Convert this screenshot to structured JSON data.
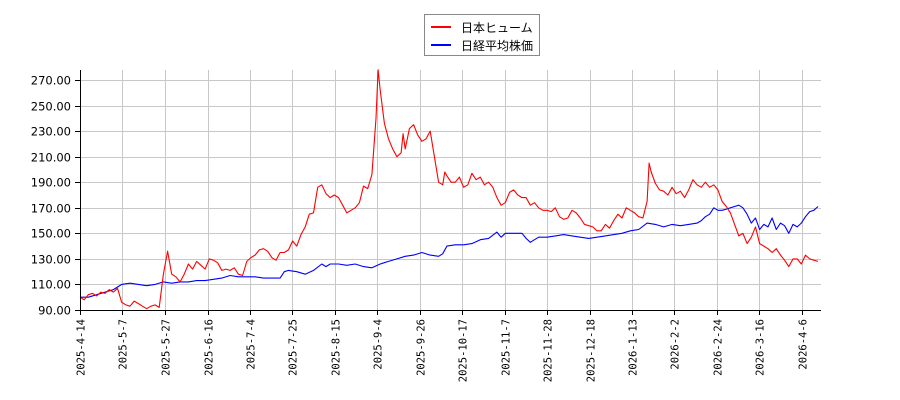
{
  "chart_data": {
    "type": "line",
    "title": "",
    "xlabel": "",
    "ylabel": "",
    "ylim": [
      90,
      280
    ],
    "grid": true,
    "legend_position": "top-center",
    "y_ticks": [
      "90.00",
      "110.00",
      "130.00",
      "150.00",
      "170.00",
      "190.00",
      "210.00",
      "230.00",
      "250.00",
      "270.00"
    ],
    "x_ticks": [
      "2025-4-14",
      "2025-5-7",
      "2025-5-27",
      "2025-6-16",
      "2025-7-4",
      "2025-7-25",
      "2025-8-15",
      "2025-9-4",
      "2025-9-26",
      "2025-10-17",
      "2025-11-7",
      "2025-11-28",
      "2025-12-18",
      "2026-1-13",
      "2026-2-2",
      "2026-2-24",
      "2026-3-16",
      "2026-4-6"
    ],
    "series": [
      {
        "name": "日本ヒューム",
        "color": "#ff0000",
        "points": [
          [
            0,
            100
          ],
          [
            2,
            98
          ],
          [
            4,
            102
          ],
          [
            6,
            103
          ],
          [
            8,
            101
          ],
          [
            10,
            104
          ],
          [
            12,
            103
          ],
          [
            14,
            106
          ],
          [
            16,
            104
          ],
          [
            18,
            107
          ],
          [
            20,
            96
          ],
          [
            22,
            94
          ],
          [
            24,
            93
          ],
          [
            26,
            97
          ],
          [
            28,
            95
          ],
          [
            30,
            93
          ],
          [
            32,
            91
          ],
          [
            34,
            93
          ],
          [
            36,
            94
          ],
          [
            38,
            92
          ],
          [
            40,
            118
          ],
          [
            42,
            136
          ],
          [
            44,
            118
          ],
          [
            46,
            116
          ],
          [
            48,
            112
          ],
          [
            50,
            118
          ],
          [
            52,
            126
          ],
          [
            54,
            122
          ],
          [
            56,
            128
          ],
          [
            58,
            125
          ],
          [
            60,
            122
          ],
          [
            62,
            130
          ],
          [
            64,
            129
          ],
          [
            66,
            127
          ],
          [
            68,
            121
          ],
          [
            70,
            122
          ],
          [
            72,
            121
          ],
          [
            74,
            123
          ],
          [
            76,
            118
          ],
          [
            78,
            117
          ],
          [
            80,
            128
          ],
          [
            82,
            131
          ],
          [
            84,
            133
          ],
          [
            86,
            137
          ],
          [
            88,
            138
          ],
          [
            90,
            136
          ],
          [
            92,
            131
          ],
          [
            94,
            129
          ],
          [
            96,
            135
          ],
          [
            98,
            135
          ],
          [
            100,
            137
          ],
          [
            102,
            144
          ],
          [
            104,
            140
          ],
          [
            106,
            149
          ],
          [
            108,
            155
          ],
          [
            110,
            165
          ],
          [
            112,
            166
          ],
          [
            114,
            186
          ],
          [
            116,
            188
          ],
          [
            118,
            181
          ],
          [
            120,
            178
          ],
          [
            122,
            180
          ],
          [
            124,
            178
          ],
          [
            126,
            172
          ],
          [
            128,
            166
          ],
          [
            130,
            168
          ],
          [
            132,
            170
          ],
          [
            134,
            174
          ],
          [
            136,
            187
          ],
          [
            138,
            185
          ],
          [
            140,
            196
          ],
          [
            142,
            240
          ],
          [
            143,
            278
          ],
          [
            144,
            262
          ],
          [
            146,
            236
          ],
          [
            148,
            224
          ],
          [
            150,
            216
          ],
          [
            152,
            210
          ],
          [
            154,
            213
          ],
          [
            155,
            228
          ],
          [
            156,
            216
          ],
          [
            158,
            232
          ],
          [
            160,
            235
          ],
          [
            162,
            227
          ],
          [
            164,
            222
          ],
          [
            166,
            224
          ],
          [
            168,
            230
          ],
          [
            170,
            210
          ],
          [
            172,
            190
          ],
          [
            174,
            188
          ],
          [
            175,
            198
          ],
          [
            176,
            195
          ],
          [
            178,
            190
          ],
          [
            180,
            190
          ],
          [
            182,
            194
          ],
          [
            184,
            186
          ],
          [
            186,
            188
          ],
          [
            188,
            197
          ],
          [
            190,
            192
          ],
          [
            192,
            194
          ],
          [
            194,
            188
          ],
          [
            196,
            190
          ],
          [
            198,
            186
          ],
          [
            200,
            178
          ],
          [
            202,
            172
          ],
          [
            204,
            174
          ],
          [
            206,
            182
          ],
          [
            208,
            184
          ],
          [
            210,
            180
          ],
          [
            212,
            178
          ],
          [
            214,
            178
          ],
          [
            216,
            172
          ],
          [
            218,
            174
          ],
          [
            220,
            170
          ],
          [
            222,
            168
          ],
          [
            224,
            168
          ],
          [
            226,
            167
          ],
          [
            228,
            170
          ],
          [
            230,
            163
          ],
          [
            232,
            161
          ],
          [
            234,
            162
          ],
          [
            236,
            168
          ],
          [
            238,
            166
          ],
          [
            240,
            162
          ],
          [
            242,
            157
          ],
          [
            244,
            156
          ],
          [
            246,
            155
          ],
          [
            248,
            152
          ],
          [
            250,
            152
          ],
          [
            252,
            157
          ],
          [
            254,
            154
          ],
          [
            256,
            160
          ],
          [
            258,
            165
          ],
          [
            260,
            162
          ],
          [
            262,
            170
          ],
          [
            264,
            168
          ],
          [
            266,
            166
          ],
          [
            268,
            163
          ],
          [
            270,
            162
          ],
          [
            272,
            175
          ],
          [
            273,
            205
          ],
          [
            274,
            198
          ],
          [
            276,
            189
          ],
          [
            278,
            184
          ],
          [
            280,
            183
          ],
          [
            282,
            180
          ],
          [
            284,
            186
          ],
          [
            286,
            181
          ],
          [
            288,
            183
          ],
          [
            290,
            178
          ],
          [
            292,
            184
          ],
          [
            294,
            192
          ],
          [
            296,
            188
          ],
          [
            298,
            186
          ],
          [
            300,
            190
          ],
          [
            302,
            186
          ],
          [
            304,
            188
          ],
          [
            306,
            184
          ],
          [
            308,
            175
          ],
          [
            310,
            171
          ],
          [
            312,
            166
          ],
          [
            314,
            157
          ],
          [
            316,
            148
          ],
          [
            318,
            150
          ],
          [
            320,
            142
          ],
          [
            322,
            147
          ],
          [
            324,
            155
          ],
          [
            326,
            142
          ],
          [
            328,
            140
          ],
          [
            330,
            138
          ],
          [
            332,
            135
          ],
          [
            334,
            138
          ],
          [
            336,
            133
          ],
          [
            338,
            129
          ],
          [
            340,
            124
          ],
          [
            342,
            130
          ],
          [
            344,
            130
          ],
          [
            346,
            126
          ],
          [
            348,
            133
          ],
          [
            350,
            130
          ],
          [
            352,
            129
          ],
          [
            354,
            128
          ]
        ]
      },
      {
        "name": "日経平均株価",
        "color": "#0000ff",
        "points": [
          [
            0,
            100
          ],
          [
            4,
            100
          ],
          [
            8,
            102
          ],
          [
            12,
            104
          ],
          [
            16,
            106
          ],
          [
            20,
            110
          ],
          [
            24,
            111
          ],
          [
            28,
            110
          ],
          [
            32,
            109
          ],
          [
            36,
            110
          ],
          [
            40,
            112
          ],
          [
            44,
            111
          ],
          [
            48,
            112
          ],
          [
            52,
            112
          ],
          [
            56,
            113
          ],
          [
            60,
            113
          ],
          [
            64,
            114
          ],
          [
            68,
            115
          ],
          [
            72,
            117
          ],
          [
            76,
            116
          ],
          [
            80,
            116
          ],
          [
            84,
            116
          ],
          [
            88,
            115
          ],
          [
            92,
            115
          ],
          [
            96,
            115
          ],
          [
            98,
            120
          ],
          [
            100,
            121
          ],
          [
            104,
            120
          ],
          [
            108,
            118
          ],
          [
            112,
            121
          ],
          [
            116,
            126
          ],
          [
            118,
            124
          ],
          [
            120,
            126
          ],
          [
            124,
            126
          ],
          [
            128,
            125
          ],
          [
            132,
            126
          ],
          [
            136,
            124
          ],
          [
            140,
            123
          ],
          [
            144,
            126
          ],
          [
            148,
            128
          ],
          [
            152,
            130
          ],
          [
            156,
            132
          ],
          [
            160,
            133
          ],
          [
            164,
            135
          ],
          [
            168,
            133
          ],
          [
            172,
            132
          ],
          [
            174,
            134
          ],
          [
            176,
            140
          ],
          [
            180,
            141
          ],
          [
            184,
            141
          ],
          [
            188,
            142
          ],
          [
            192,
            145
          ],
          [
            196,
            146
          ],
          [
            200,
            151
          ],
          [
            202,
            147
          ],
          [
            204,
            150
          ],
          [
            208,
            150
          ],
          [
            212,
            150
          ],
          [
            214,
            146
          ],
          [
            216,
            143
          ],
          [
            220,
            147
          ],
          [
            224,
            147
          ],
          [
            228,
            148
          ],
          [
            232,
            149
          ],
          [
            236,
            148
          ],
          [
            240,
            147
          ],
          [
            244,
            146
          ],
          [
            248,
            147
          ],
          [
            252,
            148
          ],
          [
            256,
            149
          ],
          [
            260,
            150
          ],
          [
            264,
            152
          ],
          [
            268,
            153
          ],
          [
            272,
            158
          ],
          [
            276,
            157
          ],
          [
            280,
            155
          ],
          [
            284,
            157
          ],
          [
            288,
            156
          ],
          [
            292,
            157
          ],
          [
            296,
            158
          ],
          [
            298,
            160
          ],
          [
            300,
            163
          ],
          [
            302,
            165
          ],
          [
            304,
            170
          ],
          [
            306,
            168
          ],
          [
            308,
            168
          ],
          [
            310,
            169
          ],
          [
            312,
            170
          ],
          [
            314,
            171
          ],
          [
            316,
            172
          ],
          [
            318,
            170
          ],
          [
            320,
            165
          ],
          [
            322,
            158
          ],
          [
            324,
            162
          ],
          [
            326,
            153
          ],
          [
            328,
            157
          ],
          [
            330,
            155
          ],
          [
            332,
            162
          ],
          [
            334,
            153
          ],
          [
            336,
            158
          ],
          [
            338,
            156
          ],
          [
            340,
            150
          ],
          [
            342,
            157
          ],
          [
            344,
            155
          ],
          [
            346,
            158
          ],
          [
            348,
            163
          ],
          [
            350,
            167
          ],
          [
            352,
            168
          ],
          [
            354,
            171
          ]
        ]
      }
    ],
    "x_total_days": 358
  },
  "legend": {
    "items": [
      {
        "label": "日本ヒューム",
        "color": "#ff0000"
      },
      {
        "label": "日経平均株価",
        "color": "#0000ff"
      }
    ]
  }
}
